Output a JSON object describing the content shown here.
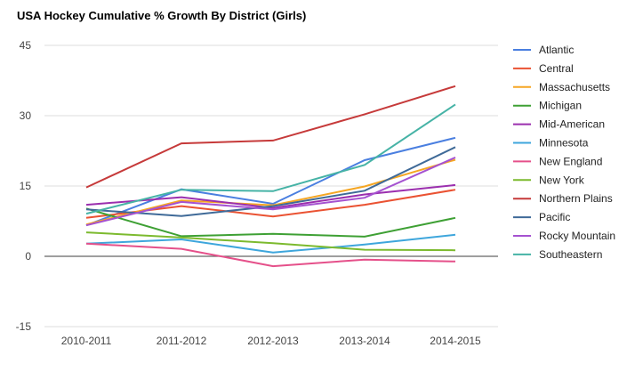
{
  "chart_data": {
    "type": "line",
    "title": "USA Hockey Cumulative % Growth By District (Girls)",
    "xlabel": "",
    "ylabel": "",
    "categories": [
      "2010-2011",
      "2011-2012",
      "2012-2013",
      "2013-2014",
      "2014-2015"
    ],
    "ylim": [
      -15,
      45
    ],
    "yticks": [
      -15,
      0,
      15,
      30,
      45
    ],
    "grid": true,
    "legend": "right",
    "series": [
      {
        "name": "Atlantic",
        "color": "#4a7fe0",
        "values": [
          6.6,
          14.3,
          11.2,
          20.5,
          25.3
        ]
      },
      {
        "name": "Central",
        "color": "#ea5232",
        "values": [
          8.2,
          10.7,
          8.5,
          11.0,
          14.2
        ]
      },
      {
        "name": "Massachusetts",
        "color": "#f5a623",
        "values": [
          6.8,
          11.9,
          10.9,
          14.9,
          20.6
        ]
      },
      {
        "name": "Michigan",
        "color": "#3ea034",
        "values": [
          10.2,
          4.3,
          4.8,
          4.2,
          8.2
        ]
      },
      {
        "name": "Mid-American",
        "color": "#9b2fae",
        "values": [
          11.0,
          12.6,
          10.3,
          13.2,
          15.2
        ]
      },
      {
        "name": "Minnesota",
        "color": "#3ea6dc",
        "values": [
          2.7,
          3.6,
          0.8,
          2.5,
          4.6
        ]
      },
      {
        "name": "New England",
        "color": "#e5508a",
        "values": [
          2.7,
          1.6,
          -2.1,
          -0.7,
          -1.1
        ]
      },
      {
        "name": "New York",
        "color": "#7cba2e",
        "values": [
          5.1,
          4.0,
          2.8,
          1.4,
          1.3
        ]
      },
      {
        "name": "Northern Plains",
        "color": "#c63a3a",
        "values": [
          14.7,
          24.1,
          24.7,
          30.3,
          36.3
        ]
      },
      {
        "name": "Pacific",
        "color": "#3f6a98",
        "values": [
          10.0,
          8.6,
          10.7,
          14.0,
          23.3
        ]
      },
      {
        "name": "Rocky Mountain",
        "color": "#a552d0",
        "values": [
          6.6,
          11.6,
          10.0,
          12.5,
          21.1
        ]
      },
      {
        "name": "Southeastern",
        "color": "#46b3a6",
        "values": [
          9.1,
          14.2,
          13.9,
          19.5,
          32.4
        ]
      }
    ]
  }
}
